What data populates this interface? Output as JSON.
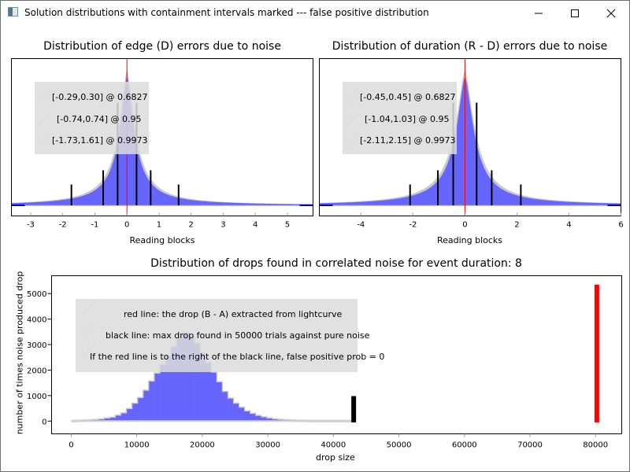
{
  "window": {
    "title": "Solution distributions with containment intervals marked --- false positive distribution",
    "icon": "app-window-icon",
    "controls": [
      "minimize-icon",
      "maximize-icon",
      "close-icon"
    ]
  },
  "colors": {
    "histogram_fill": "#6666ff",
    "histogram_outline": "#c8c8c8",
    "zero_line": "#ff0000",
    "interval_line": "#000000",
    "baseline": "#0000cc",
    "legend_bg": "#dcdcdc",
    "drop_red": "#ff0000",
    "drop_black": "#000000"
  },
  "chart_data": [
    {
      "type": "area",
      "title": "Distribution of edge (D) errors due to noise",
      "xlabel": "Reading blocks",
      "ylabel": "",
      "xlim": [
        -3.6,
        5.8
      ],
      "xticks": [
        "-3",
        "-2",
        "-1",
        "0",
        "1",
        "2",
        "3",
        "4",
        "5"
      ],
      "xtick_values": [
        -3,
        -2,
        -1,
        0,
        1,
        2,
        3,
        4,
        5
      ],
      "distribution": "peaked symmetric about 0",
      "peak_x": 0,
      "width_scale": 0.3,
      "zero_line_x": 0,
      "intervals": [
        {
          "label": "[-0.29,0.30] @ 0.6827",
          "low": -0.29,
          "high": 0.3,
          "level": 0.6827
        },
        {
          "label": "[-0.74,0.74] @ 0.95",
          "low": -0.74,
          "high": 0.74,
          "level": 0.95
        },
        {
          "label": "[-1.73,1.61] @ 0.9973",
          "low": -1.73,
          "high": 1.61,
          "level": 0.9973
        }
      ],
      "legend": [
        "[-0.29,0.30] @ 0.6827",
        "[-0.74,0.74] @ 0.95",
        "[-1.73,1.61] @ 0.9973"
      ],
      "legend_position": "top-left"
    },
    {
      "type": "area",
      "title": "Distribution of duration (R - D) errors due to noise",
      "xlabel": "Reading blocks",
      "ylabel": "",
      "xlim": [
        -5.6,
        6.0
      ],
      "xticks": [
        "-4",
        "-2",
        "0",
        "2",
        "4",
        "6"
      ],
      "xtick_values": [
        -4,
        -2,
        0,
        2,
        4,
        6
      ],
      "distribution": "peaked symmetric about 0",
      "peak_x": 0,
      "width_scale": 0.45,
      "zero_line_x": 0,
      "intervals": [
        {
          "label": "[-0.45,0.45] @ 0.6827",
          "low": -0.45,
          "high": 0.45,
          "level": 0.6827
        },
        {
          "label": "[-1.04,1.03] @ 0.95",
          "low": -1.04,
          "high": 1.03,
          "level": 0.95
        },
        {
          "label": "[-2.11,2.15] @ 0.9973",
          "low": -2.11,
          "high": 2.15,
          "level": 0.9973
        }
      ],
      "legend": [
        "[-0.45,0.45] @ 0.6827",
        "[-1.04,1.03] @ 0.95",
        "[-2.11,2.15] @ 0.9973"
      ],
      "legend_position": "top-left"
    },
    {
      "type": "bar",
      "title": "Distribution of drops found in correlated noise for event duration: 8",
      "xlabel": "drop size",
      "ylabel": "number of times noise produced drop",
      "xlim": [
        -3000,
        84000
      ],
      "ylim": [
        -500,
        5700
      ],
      "xticks": [
        "0",
        "10000",
        "20000",
        "30000",
        "40000",
        "50000",
        "60000",
        "70000",
        "80000"
      ],
      "xtick_values": [
        0,
        10000,
        20000,
        30000,
        40000,
        50000,
        60000,
        70000,
        80000
      ],
      "yticks": [
        "0",
        "1000",
        "2000",
        "3000",
        "4000",
        "5000"
      ],
      "ytick_values": [
        0,
        1000,
        2000,
        3000,
        4000,
        5000
      ],
      "bin_width": 850,
      "bin_start": 0,
      "histogram": [
        0,
        10,
        15,
        25,
        40,
        60,
        100,
        130,
        210,
        300,
        470,
        680,
        900,
        1190,
        1550,
        1860,
        2200,
        2540,
        2900,
        3220,
        3460,
        3300,
        3030,
        2660,
        2280,
        1900,
        1520,
        1140,
        880,
        680,
        520,
        380,
        280,
        200,
        145,
        100,
        65,
        45,
        30,
        20,
        12,
        8,
        5,
        3,
        2,
        1,
        0,
        0,
        0,
        0,
        0
      ],
      "max_noise_drop": {
        "x": 43100,
        "y_low": -50,
        "y_high": 980,
        "color": "#000000"
      },
      "lightcurve_drop": {
        "x": 80200,
        "y_low": -50,
        "y_high": 5350,
        "color": "#ff0000"
      },
      "legend": [
        "red line: the drop (B - A) extracted from lightcurve",
        "black line: max drop found in 50000 trials against pure noise",
        "If the red line is to the right of the black line, false positive prob = 0"
      ],
      "legend_position": "top-left"
    }
  ]
}
